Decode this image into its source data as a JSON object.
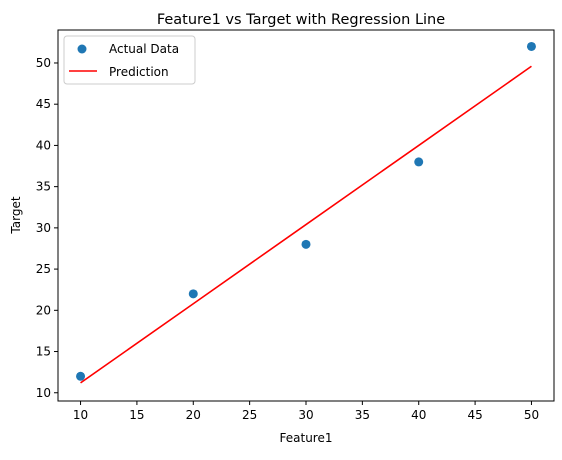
{
  "chart_data": {
    "type": "scatter",
    "title": "Feature1 vs Target with Regression Line",
    "xlabel": "Feature1",
    "ylabel": "Target",
    "xlim": [
      8,
      52
    ],
    "ylim": [
      9,
      54
    ],
    "xticks": [
      10,
      15,
      20,
      25,
      30,
      35,
      40,
      45,
      50
    ],
    "yticks": [
      10,
      15,
      20,
      25,
      30,
      35,
      40,
      45,
      50
    ],
    "grid": false,
    "legend_position": "top-left",
    "series": [
      {
        "name": "Actual Data",
        "kind": "scatter",
        "color": "#1f77b4",
        "x": [
          10,
          20,
          30,
          40,
          50
        ],
        "y": [
          12,
          22,
          28,
          38,
          52
        ]
      },
      {
        "name": "Prediction",
        "kind": "line",
        "color": "#ff0000",
        "x": [
          10,
          20,
          30,
          40,
          50
        ],
        "y": [
          11.2,
          20.8,
          30.4,
          40.0,
          49.6
        ]
      }
    ]
  }
}
